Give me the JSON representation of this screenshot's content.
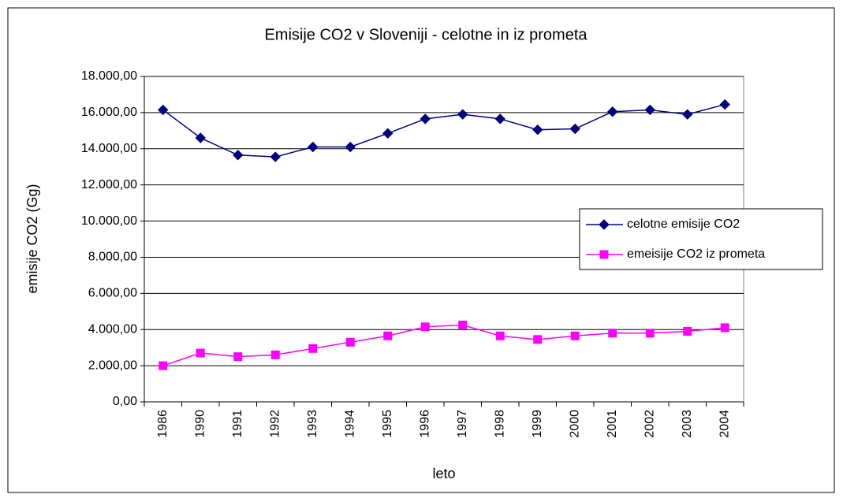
{
  "chart_data": {
    "type": "line",
    "title": "Emisije CO2 v Sloveniji - celotne in iz prometa",
    "x_label": "leto",
    "y_label": "emisije CO2 (Gg)",
    "categories": [
      "1986",
      "1990",
      "1991",
      "1992",
      "1993",
      "1994",
      "1995",
      "1996",
      "1997",
      "1998",
      "1999",
      "2000",
      "2001",
      "2002",
      "2003",
      "2004"
    ],
    "series": [
      {
        "name": "celotne emisije CO2",
        "color": "#000080",
        "marker": "diamond",
        "values": [
          16150,
          14600,
          13650,
          13550,
          14100,
          14100,
          14850,
          15650,
          15900,
          15650,
          15050,
          15100,
          16050,
          16150,
          15900,
          16450
        ]
      },
      {
        "name": "emeisije CO2 iz prometa",
        "color": "#ff00ff",
        "marker": "square",
        "values": [
          2000,
          2700,
          2500,
          2600,
          2950,
          3300,
          3650,
          4150,
          4250,
          3650,
          3450,
          3650,
          3800,
          3800,
          3900,
          4100
        ]
      }
    ],
    "ylim": [
      0,
      18000
    ],
    "yticks": [
      {
        "value": 0,
        "label": "0,00"
      },
      {
        "value": 2000,
        "label": "2.000,00"
      },
      {
        "value": 4000,
        "label": "4.000,00"
      },
      {
        "value": 6000,
        "label": "6.000,00"
      },
      {
        "value": 8000,
        "label": "8.000,00"
      },
      {
        "value": 10000,
        "label": "10.000,00"
      },
      {
        "value": 12000,
        "label": "12.000,00"
      },
      {
        "value": 14000,
        "label": "14.000,00"
      },
      {
        "value": 16000,
        "label": "16.000,00"
      },
      {
        "value": 18000,
        "label": "18.000,00"
      }
    ],
    "grid": true,
    "legend": "right"
  }
}
